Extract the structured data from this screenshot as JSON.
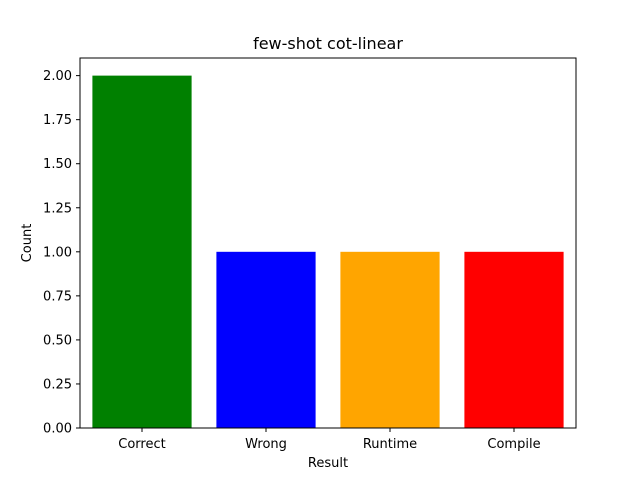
{
  "chart_data": {
    "type": "bar",
    "title": "few-shot cot-linear",
    "xlabel": "Result",
    "ylabel": "Count",
    "categories": [
      "Correct",
      "Wrong",
      "Runtime",
      "Compile"
    ],
    "values": [
      2,
      1,
      1,
      1
    ],
    "bar_colors": [
      "#008000",
      "#0000ff",
      "#ffa500",
      "#ff0000"
    ],
    "ylim": [
      0,
      2.1
    ],
    "yticks": [
      0.0,
      0.25,
      0.5,
      0.75,
      1.0,
      1.25,
      1.5,
      1.75,
      2.0
    ],
    "ytick_labels": [
      "0.00",
      "0.25",
      "0.50",
      "0.75",
      "1.00",
      "1.25",
      "1.50",
      "1.75",
      "2.00"
    ],
    "grid": false,
    "legend": "none"
  }
}
